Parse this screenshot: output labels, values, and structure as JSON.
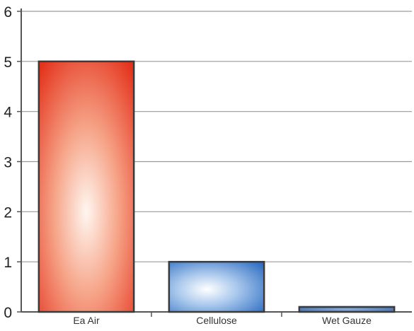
{
  "chart_data": {
    "type": "bar",
    "title": "",
    "xlabel": "",
    "ylabel": "",
    "categories": [
      "Ea Air",
      "Cellulose",
      "Wet Gauze"
    ],
    "values": [
      5,
      1,
      0.1
    ],
    "ylim": [
      0,
      6
    ],
    "yticks": [
      0,
      1,
      2,
      3,
      4,
      5,
      6
    ],
    "grid": true,
    "legend": "none",
    "bar_colors": [
      "#e8321f",
      "#2d6fc4",
      "#2f5f9e"
    ]
  }
}
